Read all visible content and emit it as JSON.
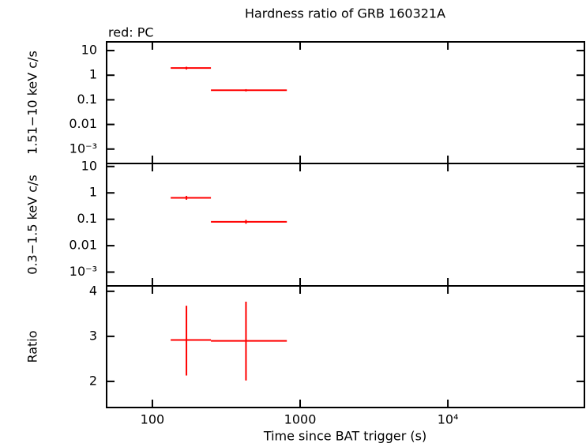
{
  "chart_data": [
    {
      "type": "scatter",
      "title": "Hardness ratio of GRB 160321A",
      "annotation": "red: PC",
      "ylabel": "1.51−10 keV c/s",
      "ylog": true,
      "xlog": true,
      "xlim": [
        49,
        84000
      ],
      "xticks": [
        100,
        1000,
        {
          "value": 10000,
          "label": "10⁴"
        }
      ],
      "ylim": [
        0.00026,
        22.6
      ],
      "yticks": [
        10,
        1,
        0.1,
        0.01,
        {
          "value": 0.001,
          "label": "10⁻³"
        }
      ],
      "series": [
        {
          "color": "#ff0000",
          "x": [
            170,
            430
          ],
          "x_low": [
            133,
            249
          ],
          "x_high": [
            249,
            813
          ],
          "values": [
            1.95,
            0.245
          ],
          "y_low": [
            1.7,
            0.22
          ],
          "y_high": [
            2.2,
            0.27
          ]
        }
      ]
    },
    {
      "type": "scatter",
      "ylabel": "0.3−1.5 keV c/s",
      "ylog": true,
      "xlog": true,
      "xlim": [
        49,
        84000
      ],
      "xticks": [
        100,
        1000,
        {
          "value": 10000,
          "label": "10⁴"
        }
      ],
      "ylim": [
        0.0003,
        13
      ],
      "yticks": [
        10,
        1,
        0.1,
        0.01,
        {
          "value": 0.001,
          "label": "10⁻³"
        }
      ],
      "series": [
        {
          "color": "#ff0000",
          "x": [
            170,
            430
          ],
          "x_low": [
            133,
            249
          ],
          "x_high": [
            249,
            813
          ],
          "values": [
            0.65,
            0.08
          ],
          "y_low": [
            0.55,
            0.068
          ],
          "y_high": [
            0.77,
            0.095
          ]
        }
      ]
    },
    {
      "type": "scatter",
      "ylabel": "Ratio",
      "xlabel": "Time since BAT trigger (s)",
      "ylog": false,
      "xlog": true,
      "xlim": [
        49,
        84000
      ],
      "xticks": [
        100,
        1000,
        {
          "value": 10000,
          "label": "10⁴"
        }
      ],
      "ylim": [
        1.42,
        4.12
      ],
      "yticks": [
        2,
        3,
        4
      ],
      "series": [
        {
          "color": "#ff0000",
          "x": [
            170,
            430
          ],
          "x_low": [
            133,
            249
          ],
          "x_high": [
            249,
            813
          ],
          "values": [
            2.92,
            2.9
          ],
          "y_low": [
            2.13,
            2.02
          ],
          "y_high": [
            3.68,
            3.77
          ]
        }
      ]
    }
  ]
}
